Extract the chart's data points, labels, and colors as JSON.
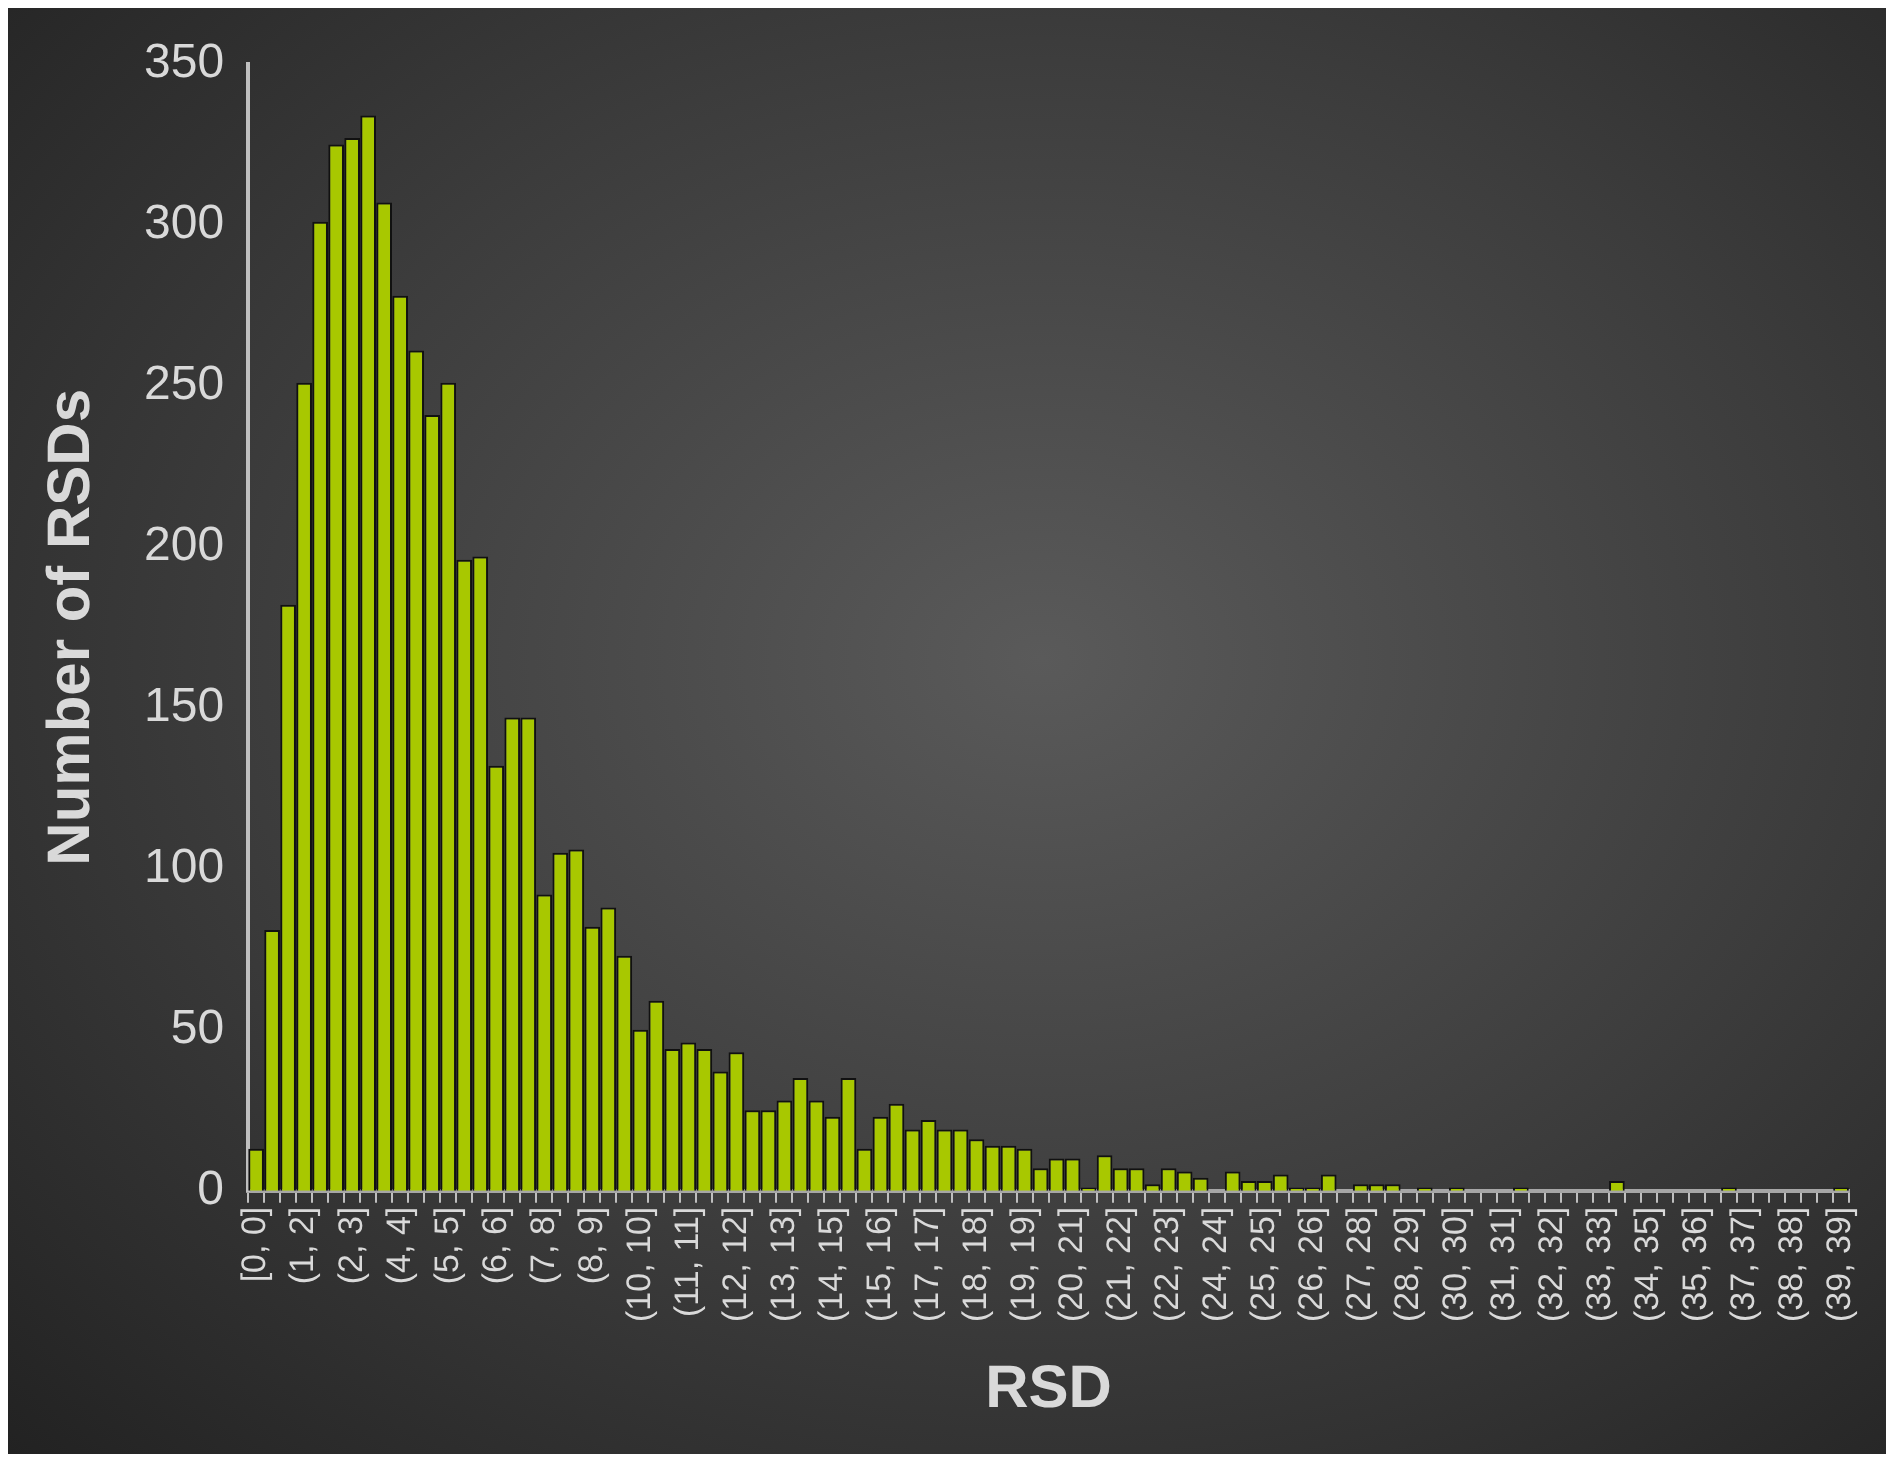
{
  "chart_data": {
    "type": "bar",
    "xlabel": "RSD",
    "ylabel": "Number of RSDs",
    "categories": [
      "[0, 0]",
      null,
      null,
      "(1, 2]",
      null,
      null,
      "(2, 3]",
      null,
      null,
      "(4, 4]",
      null,
      null,
      "(5, 5]",
      null,
      null,
      "(6, 6]",
      null,
      null,
      "(7, 8]",
      null,
      null,
      "(8, 9]",
      null,
      null,
      "(10, 10]",
      null,
      null,
      "(11, 11]",
      null,
      null,
      "(12, 12]",
      null,
      null,
      "(13, 13]",
      null,
      null,
      "(14, 15]",
      null,
      null,
      "(15, 16]",
      null,
      null,
      "(17, 17]",
      null,
      null,
      "(18, 18]",
      null,
      null,
      "(19, 19]",
      null,
      null,
      "(20, 21]",
      null,
      null,
      "(21, 22]",
      null,
      null,
      "(22, 23]",
      null,
      null,
      "(24, 24]",
      null,
      null,
      "(25, 25]",
      null,
      null,
      "(26, 26]",
      null,
      null,
      "(27, 28]",
      null,
      null,
      "(28, 29]",
      null,
      null,
      "(30, 30]",
      null,
      null,
      "(31, 31]",
      null,
      null,
      "(32, 32]",
      null,
      null,
      "(33, 33]",
      null,
      null,
      "(34, 35]",
      null,
      null,
      "(35, 36]",
      null,
      null,
      "(37, 37]",
      null,
      null,
      "(38, 38]",
      null,
      null,
      "(39, 39]"
    ],
    "values": [
      13,
      81,
      182,
      251,
      301,
      325,
      327,
      334,
      307,
      278,
      261,
      241,
      251,
      196,
      197,
      132,
      147,
      147,
      92,
      105,
      106,
      82,
      88,
      73,
      50,
      59,
      44,
      46,
      44,
      37,
      43,
      25,
      25,
      28,
      35,
      28,
      23,
      35,
      13,
      23,
      27,
      19,
      22,
      19,
      19,
      16,
      14,
      14,
      13,
      7,
      10,
      10,
      1,
      11,
      7,
      7,
      2,
      7,
      6,
      4,
      0,
      6,
      3,
      3,
      5,
      1,
      1,
      5,
      0,
      2,
      2,
      2,
      0,
      1,
      0,
      1,
      0,
      0,
      0,
      1,
      0,
      0,
      0,
      0,
      0,
      3,
      0,
      0,
      0,
      0,
      0,
      0,
      1,
      0,
      0,
      0,
      0,
      0,
      0,
      1
    ],
    "color": "#a8c800",
    "ylim": [
      0,
      350
    ],
    "yticks": [
      0,
      50,
      100,
      150,
      200,
      250,
      300,
      350
    ],
    "grid": false,
    "legend": false
  }
}
